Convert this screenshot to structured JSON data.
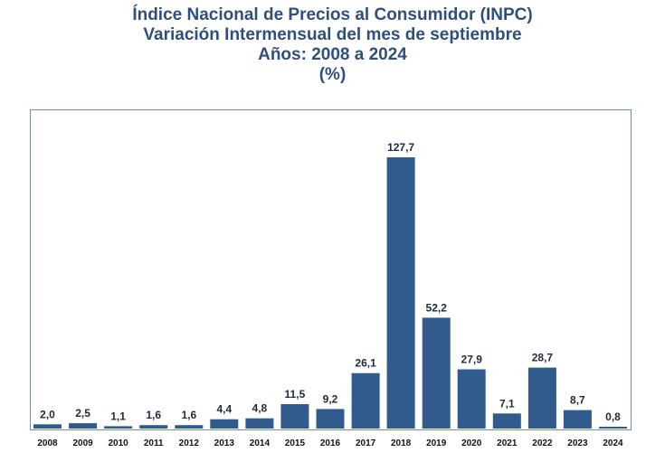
{
  "chart_data": {
    "type": "bar",
    "title_lines": [
      "Índice Nacional de Precios al Consumidor (INPC)",
      "Variación Intermensual del mes de septiembre",
      "Años: 2008 a 2024",
      "(%)"
    ],
    "categories": [
      "2008",
      "2009",
      "2010",
      "2011",
      "2012",
      "2013",
      "2014",
      "2015",
      "2016",
      "2017",
      "2018",
      "2019",
      "2020",
      "2021",
      "2022",
      "2023",
      "2024"
    ],
    "values": [
      2.0,
      2.5,
      1.1,
      1.6,
      1.6,
      4.4,
      4.8,
      11.5,
      9.2,
      26.1,
      127.7,
      52.2,
      27.9,
      7.1,
      28.7,
      8.7,
      0.8
    ],
    "data_labels": [
      "2,0",
      "2,5",
      "1,1",
      "1,6",
      "1,6",
      "4,4",
      "4,8",
      "11,5",
      "9,2",
      "26,1",
      "127,7",
      "52,2",
      "27,9",
      "7,1",
      "28,7",
      "8,7",
      "0,8"
    ],
    "xlabel": "",
    "ylabel": "",
    "ylim": [
      0,
      127.7
    ],
    "grid": false,
    "legend": "none",
    "colors": {
      "bar": "#325b8d",
      "title": "#2f4f7f",
      "frame": "#6f8fb0"
    }
  }
}
